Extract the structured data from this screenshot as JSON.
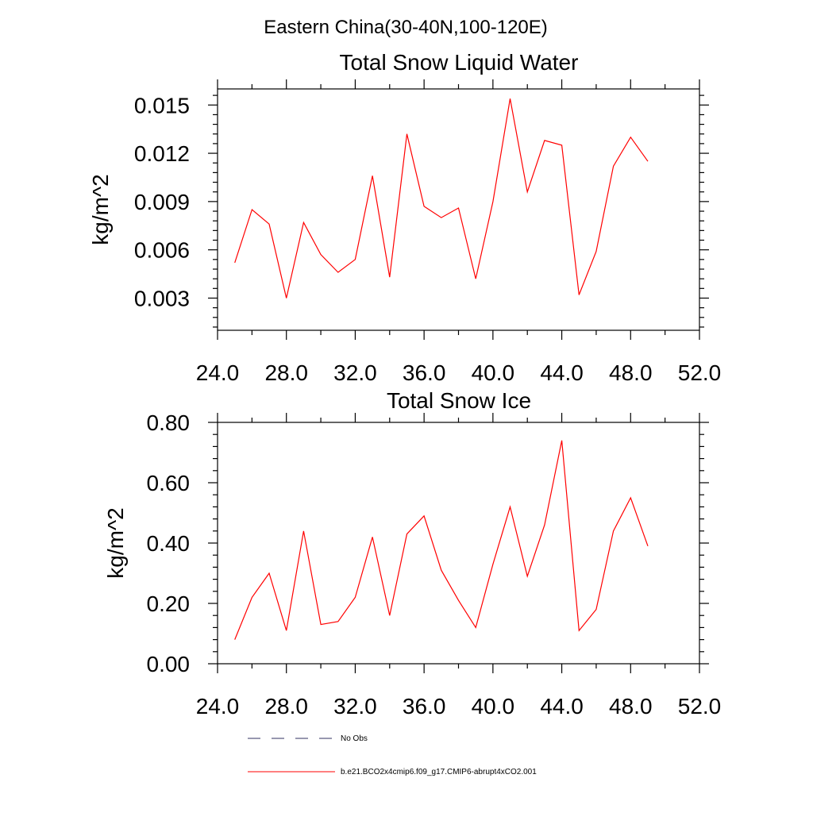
{
  "figure_title": "Eastern China(30-40N,100-120E)",
  "colors": {
    "model": "#ff0000",
    "obs": "#303060",
    "axis": "#000000"
  },
  "legend": [
    {
      "label": "No Obs",
      "style": "dashed",
      "color": "#303060"
    },
    {
      "label": "b.e21.BCO2x4cmip6.f09_g17.CMIP6-abrupt4xCO2.001",
      "style": "solid",
      "color": "#ff0000"
    }
  ],
  "chart_data": [
    {
      "type": "line",
      "title": "Total Snow Liquid Water",
      "xlabel": "",
      "ylabel": "kg/m^2",
      "xlim": [
        24,
        52
      ],
      "ylim": [
        0.001,
        0.016
      ],
      "xticks": [
        "24.0",
        "28.0",
        "32.0",
        "36.0",
        "40.0",
        "44.0",
        "48.0",
        "52.0"
      ],
      "yticks": [
        "0.003",
        "0.006",
        "0.009",
        "0.012",
        "0.015"
      ],
      "series": [
        {
          "name": "b.e21.BCO2x4cmip6.f09_g17.CMIP6-abrupt4xCO2.001",
          "x": [
            25,
            26,
            27,
            28,
            29,
            30,
            31,
            32,
            33,
            34,
            35,
            36,
            37,
            38,
            39,
            40,
            41,
            42,
            43,
            44,
            45,
            46,
            47,
            48,
            49
          ],
          "values": [
            0.0052,
            0.0085,
            0.0076,
            0.003,
            0.0077,
            0.0057,
            0.0046,
            0.0054,
            0.0106,
            0.0043,
            0.0132,
            0.0087,
            0.008,
            0.0086,
            0.0042,
            0.009,
            0.0154,
            0.0096,
            0.0128,
            0.0125,
            0.0032,
            0.0059,
            0.0112,
            0.013,
            0.0115
          ]
        }
      ]
    },
    {
      "type": "line",
      "title": "Total Snow Ice",
      "xlabel": "",
      "ylabel": "kg/m^2",
      "xlim": [
        24,
        52
      ],
      "ylim": [
        0,
        0.8
      ],
      "xticks": [
        "24.0",
        "28.0",
        "32.0",
        "36.0",
        "40.0",
        "44.0",
        "48.0",
        "52.0"
      ],
      "yticks": [
        "0.00",
        "0.20",
        "0.40",
        "0.60",
        "0.80"
      ],
      "series": [
        {
          "name": "b.e21.BCO2x4cmip6.f09_g17.CMIP6-abrupt4xCO2.001",
          "x": [
            25,
            26,
            27,
            28,
            29,
            30,
            31,
            32,
            33,
            34,
            35,
            36,
            37,
            38,
            39,
            40,
            41,
            42,
            43,
            44,
            45,
            46,
            47,
            48,
            49
          ],
          "values": [
            0.08,
            0.22,
            0.3,
            0.11,
            0.44,
            0.13,
            0.14,
            0.22,
            0.42,
            0.16,
            0.43,
            0.49,
            0.31,
            0.21,
            0.12,
            0.33,
            0.52,
            0.29,
            0.46,
            0.74,
            0.11,
            0.18,
            0.44,
            0.55,
            0.39
          ]
        }
      ]
    }
  ]
}
